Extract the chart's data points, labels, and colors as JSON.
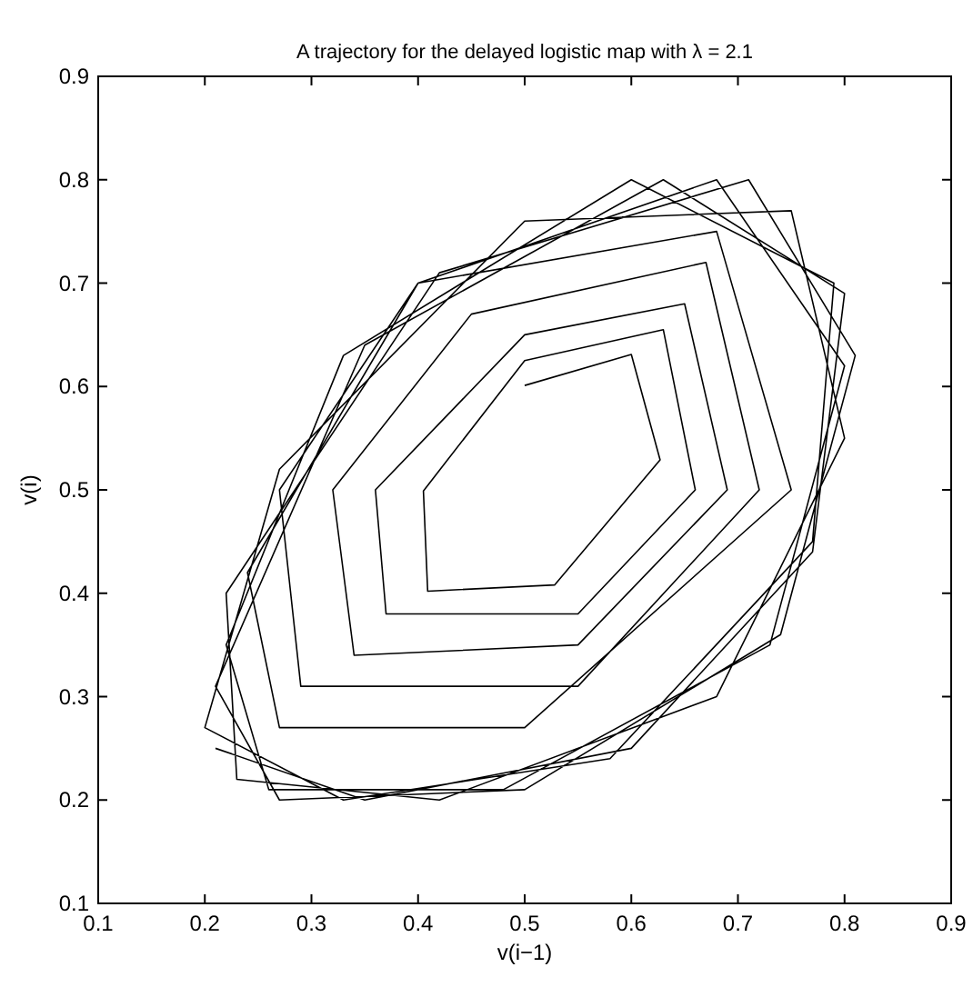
{
  "chart_data": {
    "type": "line",
    "title": "A trajectory for the delayed logistic map with λ = 2.1",
    "xlabel": "v(i−1)",
    "ylabel": "v(i)",
    "xlim": [
      0.1,
      0.9
    ],
    "ylim": [
      0.1,
      0.9
    ],
    "xticks": [
      0.1,
      0.2,
      0.3,
      0.4,
      0.5,
      0.6,
      0.7,
      0.8,
      0.9
    ],
    "yticks": [
      0.1,
      0.2,
      0.3,
      0.4,
      0.5,
      0.6,
      0.7,
      0.8,
      0.9
    ],
    "marker": "none",
    "line_style": "solid",
    "series": [
      {
        "color": "#000000",
        "x": [
          0.5,
          0.6,
          0.627,
          0.528,
          0.409,
          0.405,
          0.5,
          0.63,
          0.66,
          0.55,
          0.37,
          0.36,
          0.5,
          0.65,
          0.69,
          0.55,
          0.34,
          0.32,
          0.45,
          0.67,
          0.72,
          0.55,
          0.29,
          0.27,
          0.4,
          0.68,
          0.75,
          0.5,
          0.27,
          0.24,
          0.4,
          0.68,
          0.8,
          0.73,
          0.48,
          0.26,
          0.22,
          0.33,
          0.6,
          0.79,
          0.77,
          0.58,
          0.33,
          0.2,
          0.27,
          0.5,
          0.75,
          0.8,
          0.68,
          0.42,
          0.23,
          0.22,
          0.42,
          0.71,
          0.81,
          0.74,
          0.5,
          0.27,
          0.21,
          0.35,
          0.63,
          0.8,
          0.77,
          0.6,
          0.35,
          0.21
        ],
        "values": [
          0.601,
          0.631,
          0.529,
          0.408,
          0.402,
          0.499,
          0.625,
          0.655,
          0.5,
          0.38,
          0.38,
          0.5,
          0.65,
          0.68,
          0.5,
          0.35,
          0.34,
          0.5,
          0.67,
          0.72,
          0.5,
          0.31,
          0.31,
          0.5,
          0.7,
          0.75,
          0.5,
          0.27,
          0.27,
          0.42,
          0.7,
          0.8,
          0.62,
          0.35,
          0.21,
          0.21,
          0.35,
          0.63,
          0.8,
          0.7,
          0.45,
          0.24,
          0.2,
          0.27,
          0.52,
          0.76,
          0.77,
          0.55,
          0.3,
          0.2,
          0.22,
          0.4,
          0.71,
          0.8,
          0.63,
          0.36,
          0.21,
          0.2,
          0.31,
          0.64,
          0.8,
          0.69,
          0.44,
          0.25,
          0.2,
          0.25
        ]
      }
    ]
  }
}
